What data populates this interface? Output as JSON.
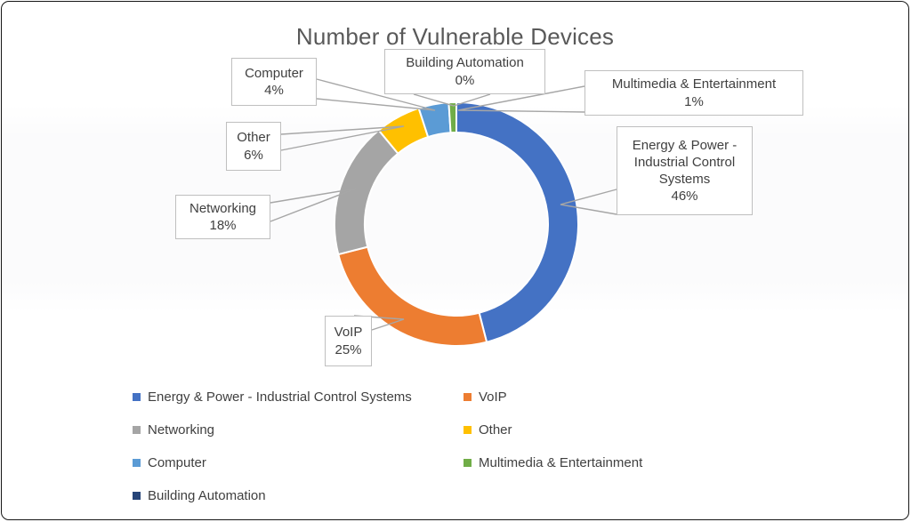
{
  "chart_data": {
    "type": "pie",
    "subtype": "donut",
    "title": "Number of Vulnerable Devices",
    "unit": "%",
    "hole_ratio": 0.75,
    "start_angle_deg": 0,
    "direction": "clockwise",
    "legend_position": "bottom",
    "slices": [
      {
        "label": "Energy & Power - Industrial Control Systems",
        "pct": 46,
        "pct_label": "46%",
        "color": "#4472C4"
      },
      {
        "label": "VoIP",
        "pct": 25,
        "pct_label": "25%",
        "color": "#ED7D31"
      },
      {
        "label": "Networking",
        "pct": 18,
        "pct_label": "18%",
        "color": "#A5A5A5"
      },
      {
        "label": "Other",
        "pct": 6,
        "pct_label": "6%",
        "color": "#FFC000"
      },
      {
        "label": "Computer",
        "pct": 4,
        "pct_label": "4%",
        "color": "#5B9BD5"
      },
      {
        "label": "Multimedia & Entertainment",
        "pct": 1,
        "pct_label": "1%",
        "color": "#70AD47"
      },
      {
        "label": "Building Automation",
        "pct": 0,
        "pct_label": "0%",
        "color": "#264478"
      }
    ],
    "colors": {
      "title_text": "#595959",
      "label_text": "#404040",
      "callout_border": "#BFBFBF",
      "leader_line": "#A6A6A6",
      "slice_separator": "#FFFFFF"
    }
  }
}
